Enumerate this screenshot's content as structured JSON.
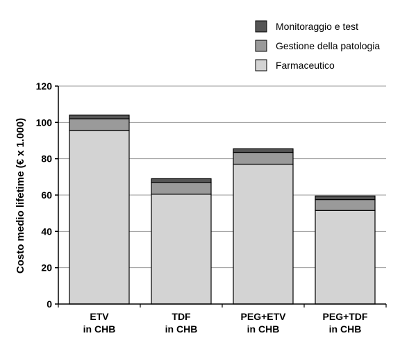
{
  "chart_data": {
    "type": "bar",
    "stacked": true,
    "categories": [
      [
        "ETV",
        "in CHB"
      ],
      [
        "TDF",
        "in CHB"
      ],
      [
        "PEG+ETV",
        "in CHB"
      ],
      [
        "PEG+TDF",
        "in CHB"
      ]
    ],
    "series": [
      {
        "name": "Farmaceutico",
        "color": "#d3d3d3",
        "values": [
          95.5,
          60.5,
          77.0,
          51.5
        ]
      },
      {
        "name": "Gestione della patologia",
        "color": "#9a9a9a",
        "values": [
          6.5,
          6.5,
          6.5,
          6.0
        ]
      },
      {
        "name": "Monitoraggio e test",
        "color": "#555555",
        "values": [
          2.0,
          2.0,
          2.0,
          2.0
        ]
      }
    ],
    "legend_order": [
      "Monitoraggio e test",
      "Gestione della patologia",
      "Farmaceutico"
    ],
    "ylabel": "Costo medio lifetime (€ x 1.000)",
    "xlabel": "",
    "ylim": [
      0,
      120
    ],
    "yticks": [
      0,
      20,
      40,
      60,
      80,
      100,
      120
    ],
    "grid": true,
    "legend_position": "top-right"
  }
}
